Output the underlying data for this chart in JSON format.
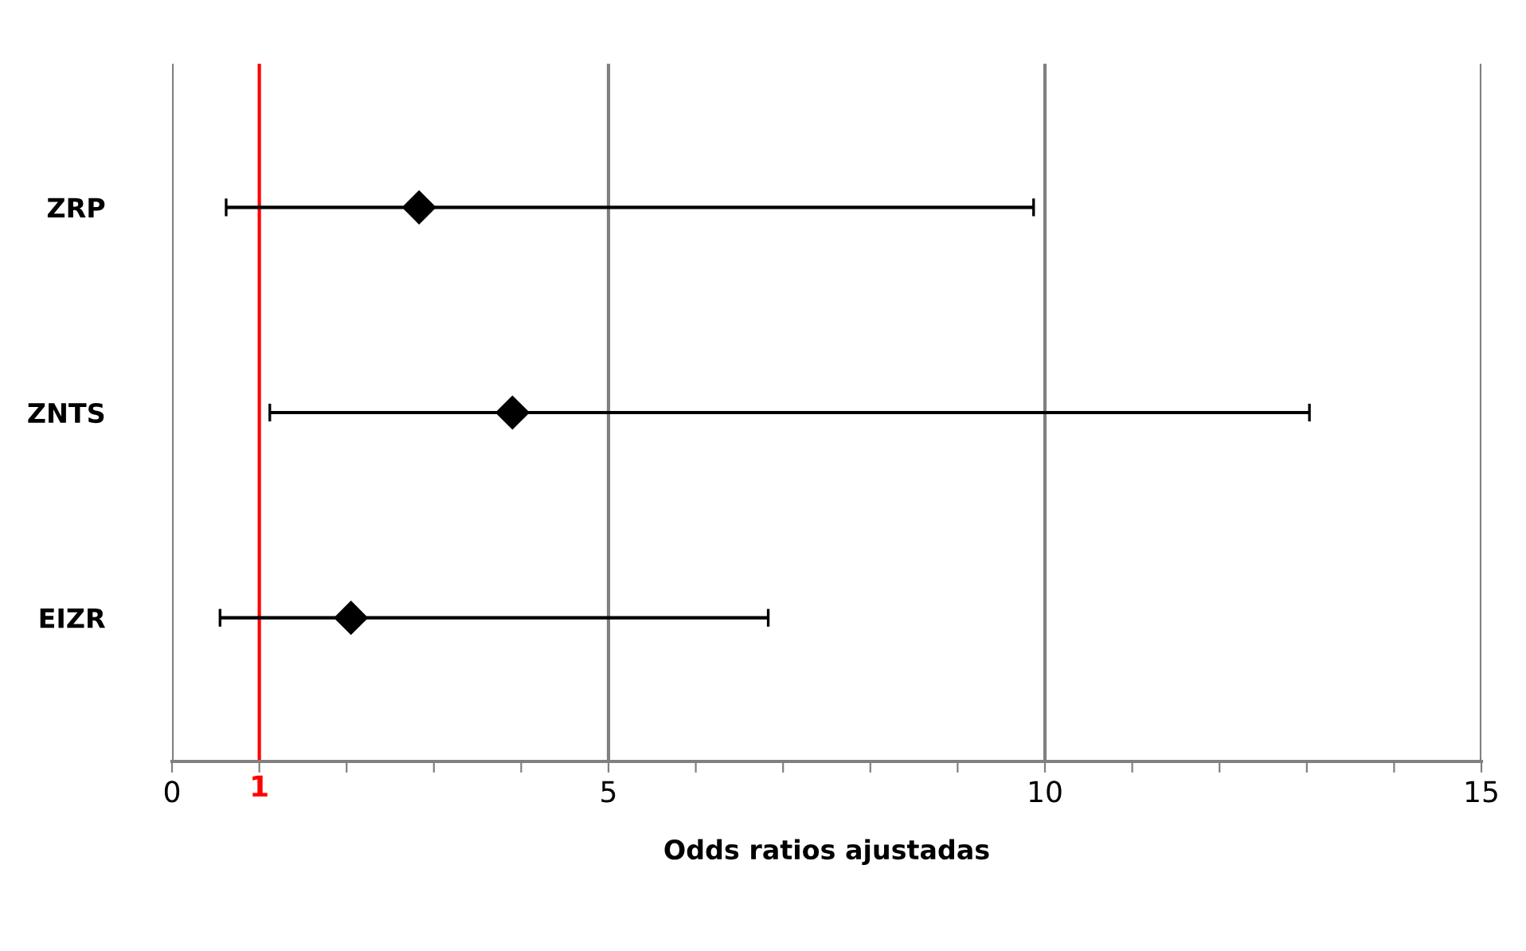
{
  "chart_data": {
    "type": "scatter",
    "orientation": "horizontal",
    "xlabel": "Odds ratios ajustadas",
    "categories": [
      "ZRP",
      "ZNTS",
      "EIZR"
    ],
    "values": [
      2.83,
      3.9,
      2.05
    ],
    "errors": [
      [
        0.62,
        9.87
      ],
      [
        1.12,
        13.03
      ],
      [
        0.55,
        6.83
      ]
    ],
    "color": "#000000",
    "marker": "diamond",
    "xlim": [
      0,
      15
    ],
    "xticks": [
      0,
      {
        "value": 1,
        "label": null
      },
      {
        "value": 2,
        "label": null
      },
      {
        "value": 3,
        "label": null
      },
      {
        "value": 4,
        "label": null
      },
      5,
      {
        "value": 6,
        "label": null
      },
      {
        "value": 7,
        "label": null
      },
      {
        "value": 8,
        "label": null
      },
      {
        "value": 9,
        "label": null
      },
      10,
      {
        "value": 11,
        "label": null
      },
      {
        "value": 12,
        "label": null
      },
      {
        "value": 13,
        "label": null
      },
      {
        "value": 14,
        "label": null
      },
      15
    ],
    "grid": "x",
    "ref_lines": [
      {
        "axis": "x",
        "value": 1,
        "label": "1",
        "color": "#ff0000"
      }
    ]
  }
}
